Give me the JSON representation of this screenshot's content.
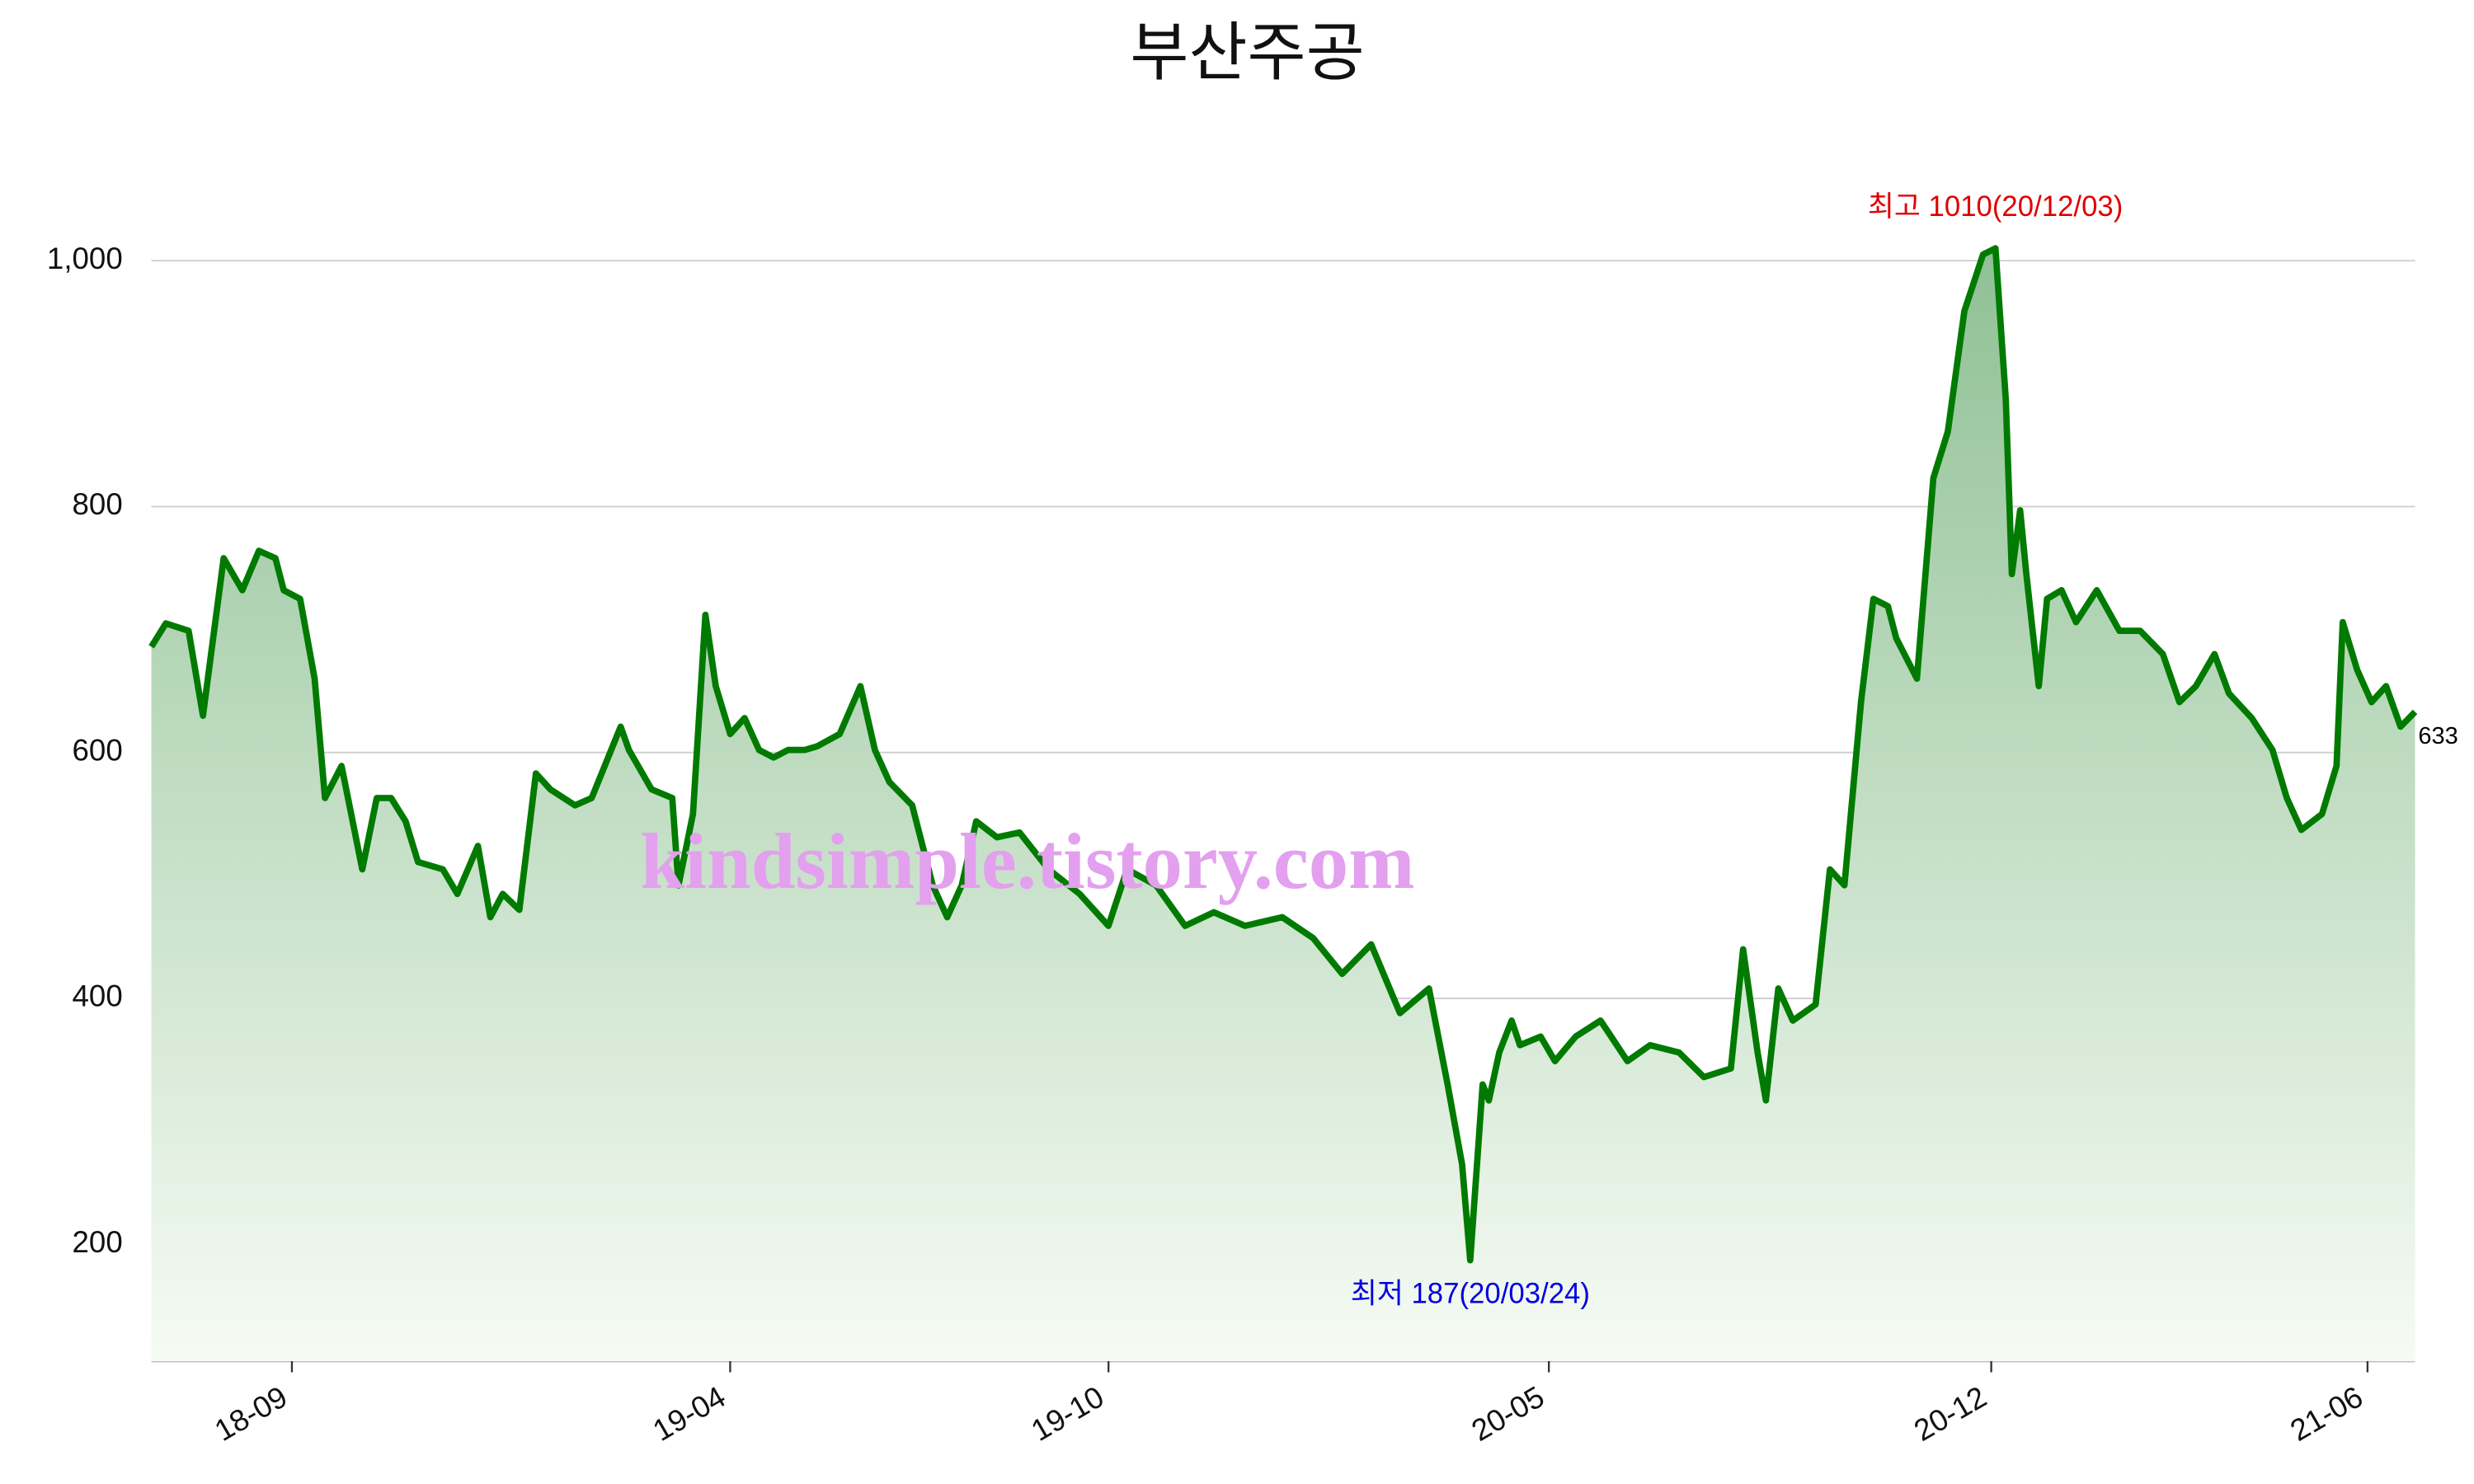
{
  "chart_data": {
    "type": "area",
    "title": "부산주공",
    "watermark": "kindsimple.tistory.com",
    "color": "#007a00",
    "fill_top": "#86bb8c",
    "fill_bottom": "#f6fbf4",
    "grid": true,
    "x": [
      "18/06/25",
      "18/07/02",
      "18/07/13",
      "18/07/20",
      "18/07/30",
      "18/08/08",
      "18/08/16",
      "18/08/24",
      "18/08/28",
      "18/09/05",
      "18/09/12",
      "18/09/17",
      "18/09/25",
      "18/10/05",
      "18/10/12",
      "18/10/19",
      "18/10/26",
      "18/11/01",
      "18/11/13",
      "18/11/20",
      "18/11/30",
      "18/12/06",
      "18/12/12",
      "18/12/20",
      "18/12/28",
      "19/01/04",
      "19/01/16",
      "19/01/24",
      "19/02/07",
      "19/02/11",
      "19/02/22",
      "19/03/04",
      "19/03/07",
      "19/03/14",
      "19/03/20",
      "19/03/25",
      "19/04/01",
      "19/04/08",
      "19/04/15",
      "19/04/22",
      "19/04/29",
      "19/05/07",
      "19/05/13",
      "19/05/24",
      "19/06/03",
      "19/06/10",
      "19/06/17",
      "19/06/28",
      "19/07/08",
      "19/07/15",
      "19/07/22",
      "19/07/29",
      "19/08/08",
      "19/08/19",
      "19/09/02",
      "19/09/17",
      "19/10/01",
      "19/10/10",
      "19/10/24",
      "19/11/07",
      "19/11/21",
      "19/12/06",
      "19/12/24",
      "20/01/08",
      "20/01/22",
      "20/02/05",
      "20/02/19",
      "20/03/04",
      "20/03/13",
      "20/03/20",
      "20/03/24",
      "20/03/30",
      "20/04/02",
      "20/04/07",
      "20/04/13",
      "20/04/17",
      "20/04/27",
      "20/05/04",
      "20/05/14",
      "20/05/26",
      "20/06/08",
      "20/06/19",
      "20/07/03",
      "20/07/15",
      "20/07/28",
      "20/08/03",
      "20/08/10",
      "20/08/14",
      "20/08/20",
      "20/08/27",
      "20/09/07",
      "20/09/14",
      "20/09/21",
      "20/09/29",
      "20/10/05",
      "20/10/12",
      "20/10/16",
      "20/10/26",
      "20/11/03",
      "20/11/10",
      "20/11/18",
      "20/11/27",
      "20/12/03",
      "20/12/08",
      "20/12/11",
      "20/12/15",
      "20/12/18",
      "20/12/24",
      "20/12/28",
      "21/01/04",
      "21/01/11",
      "21/01/21",
      "21/02/01",
      "21/02/11",
      "21/02/22",
      "21/03/02",
      "21/03/10",
      "21/03/19",
      "21/03/26",
      "21/04/06",
      "21/04/16",
      "21/04/23",
      "21/04/30",
      "21/05/10",
      "21/05/17",
      "21/05/20",
      "21/05/27",
      "21/06/03",
      "21/06/10",
      "21/06/17",
      "21/06/24"
    ],
    "values": [
      686,
      705,
      699,
      630,
      758,
      732,
      764,
      758,
      732,
      725,
      660,
      563,
      589,
      505,
      563,
      563,
      544,
      511,
      505,
      485,
      524,
      466,
      485,
      472,
      583,
      570,
      557,
      563,
      621,
      602,
      570,
      563,
      492,
      550,
      712,
      654,
      615,
      628,
      602,
      596,
      602,
      602,
      605,
      615,
      654,
      602,
      576,
      557,
      492,
      466,
      492,
      544,
      531,
      535,
      505,
      485,
      459,
      505,
      492,
      459,
      470,
      459,
      466,
      449,
      420,
      444,
      388,
      408,
      330,
      265,
      187,
      330,
      317,
      356,
      382,
      362,
      369,
      349,
      369,
      382,
      349,
      362,
      356,
      336,
      343,
      440,
      356,
      317,
      408,
      382,
      395,
      505,
      492,
      641,
      725,
      719,
      693,
      660,
      823,
      861,
      959,
      1005,
      1010,
      887,
      745,
      797,
      745,
      654,
      725,
      732,
      706,
      732,
      699,
      699,
      680,
      641,
      654,
      680,
      648,
      628,
      602,
      563,
      537,
      550,
      589,
      706,
      667,
      641,
      654,
      621,
      633
    ],
    "xlim": [
      "18/06/25",
      "21/06/24"
    ],
    "xticks": [
      {
        "value": "18/09/01",
        "label": "18-09"
      },
      {
        "value": "19/04/01",
        "label": "19-04"
      },
      {
        "value": "19/10/01",
        "label": "19-10"
      },
      {
        "value": "20/05/01",
        "label": "20-05"
      },
      {
        "value": "20/12/01",
        "label": "20-12"
      },
      {
        "value": "21/06/01",
        "label": "21-06"
      }
    ],
    "ylim": [
      105,
      1090
    ],
    "yticks": [
      200,
      400,
      600,
      800,
      {
        "value": 1000,
        "label": "1,000"
      }
    ],
    "annotations": [
      {
        "text": "최고 1010(20/12/03)",
        "x": "20/12/03",
        "y": 1010,
        "color": "#e00000",
        "position": "above"
      },
      {
        "text": "최저 187(20/03/24)",
        "x": "20/03/24",
        "y": 187,
        "color": "#0000e0",
        "position": "below"
      },
      {
        "text": "633",
        "x": "21/06/24",
        "y": 633,
        "color": "#000000",
        "position": "right"
      }
    ]
  }
}
